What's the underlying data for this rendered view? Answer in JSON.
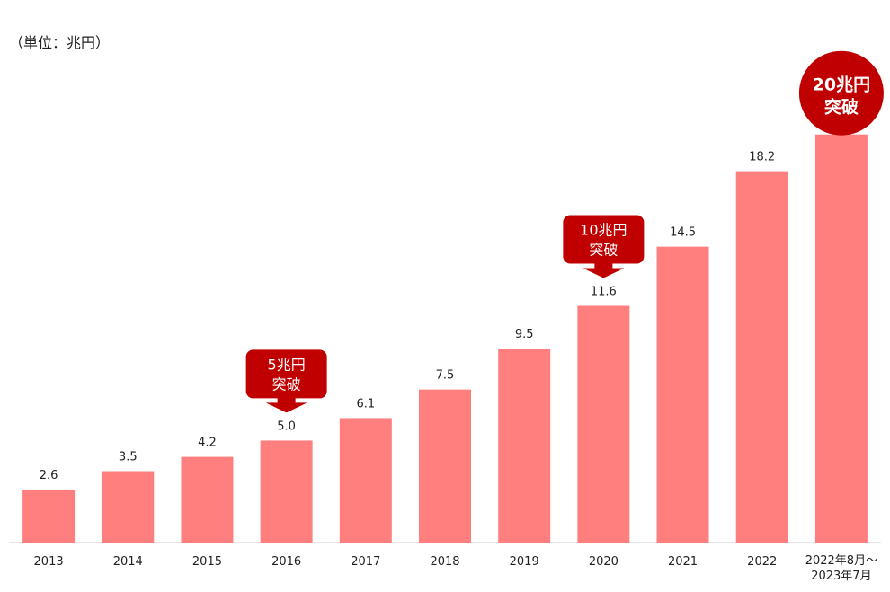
{
  "chart_data": {
    "type": "bar",
    "unit_label": "（単位：兆円）",
    "categories": [
      "2013",
      "2014",
      "2015",
      "2016",
      "2017",
      "2018",
      "2019",
      "2020",
      "2021",
      "2022",
      "2022年8月～\n2023年7月"
    ],
    "values": [
      2.6,
      3.5,
      4.2,
      5.0,
      6.1,
      7.5,
      9.5,
      11.6,
      14.5,
      18.2,
      null
    ],
    "value_labels": [
      "2.6",
      "3.5",
      "4.2",
      "5.0",
      "6.1",
      "7.5",
      "9.5",
      "11.6",
      "14.5",
      "18.2",
      ""
    ],
    "last_bar_value_estimate": 20.0,
    "ylim": [
      0,
      21
    ],
    "bar_color": "#ff7f7f",
    "callout_color": "#c00000",
    "annotations": [
      {
        "category_index": 3,
        "text_line1": "5兆円",
        "text_line2": "突破",
        "style": "arrow-box"
      },
      {
        "category_index": 7,
        "text_line1": "10兆円",
        "text_line2": "突破",
        "style": "arrow-box"
      },
      {
        "category_index": 10,
        "text_line1": "20兆円",
        "text_line2": "突破",
        "style": "circle"
      }
    ]
  }
}
